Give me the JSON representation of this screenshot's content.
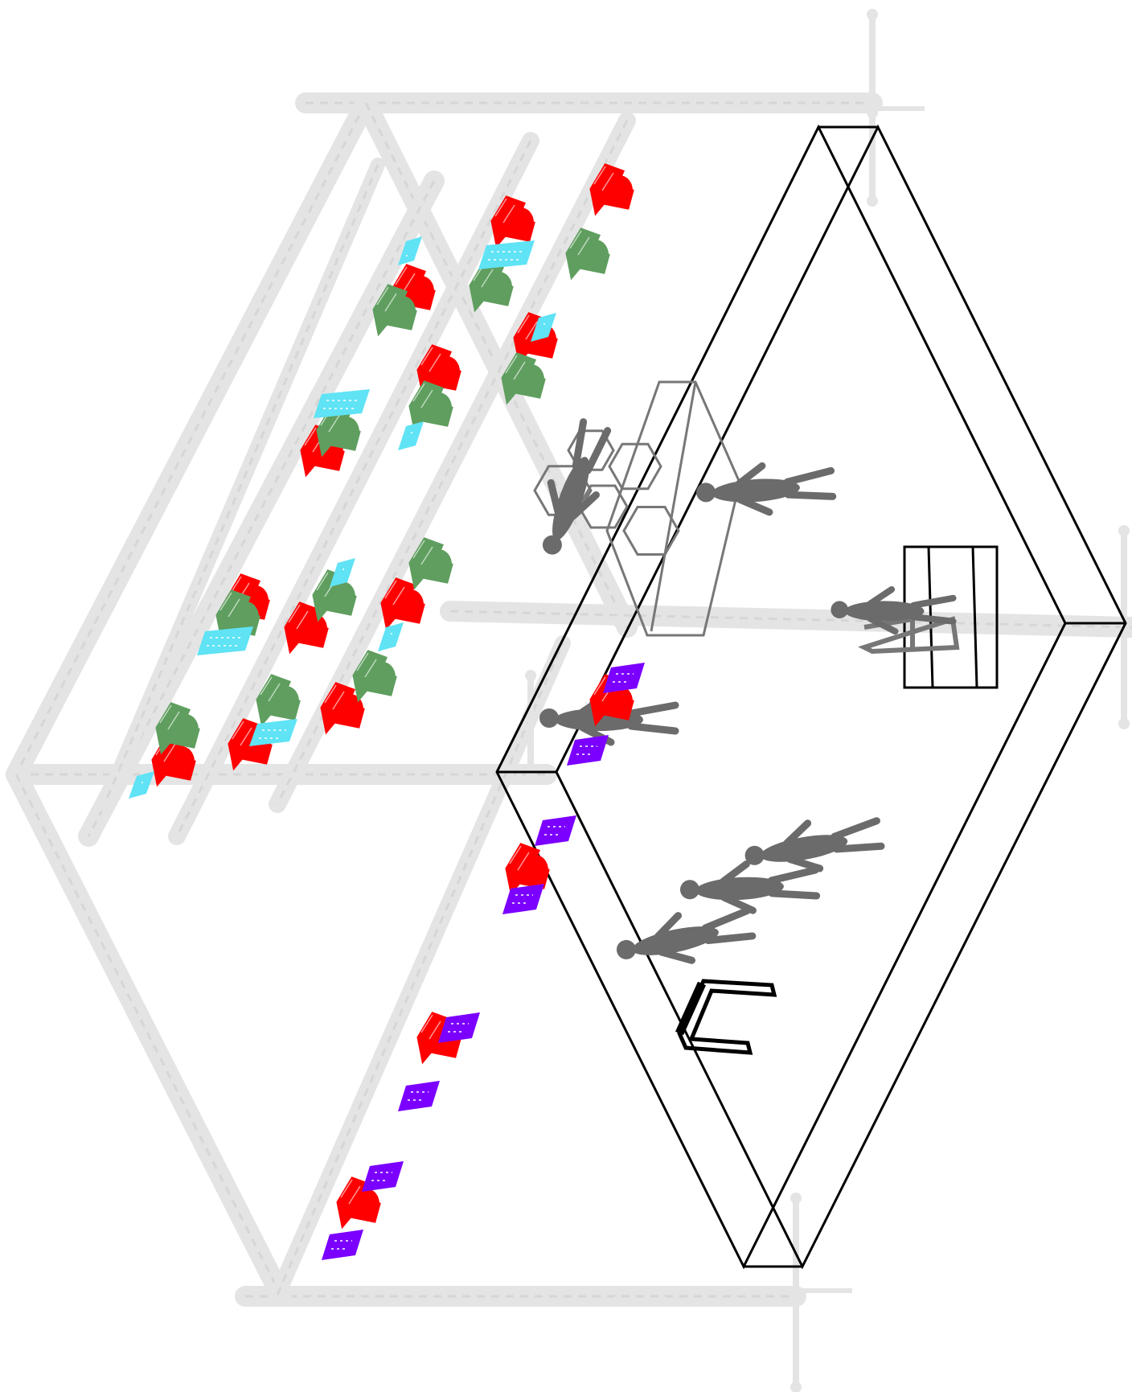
{
  "colors": {
    "truss": "#e4e4e4",
    "truss_dark": "#d6d6d6",
    "stage_outline": "#000000",
    "figure": "#6b6b6b",
    "fixture_red": "#ff0000",
    "fixture_green": "#5f9e5f",
    "fixture_cyan": "#5fe3f5",
    "fixture_purple": "#7b00ff",
    "prop_gray": "#777777"
  },
  "icons": [
    "truss-beam",
    "moving-head-fixture-icon",
    "led-panel-fixture-icon",
    "performer-figure-icon",
    "chair-icon",
    "screen-frame-icon",
    "hexagon-prop-icon"
  ]
}
